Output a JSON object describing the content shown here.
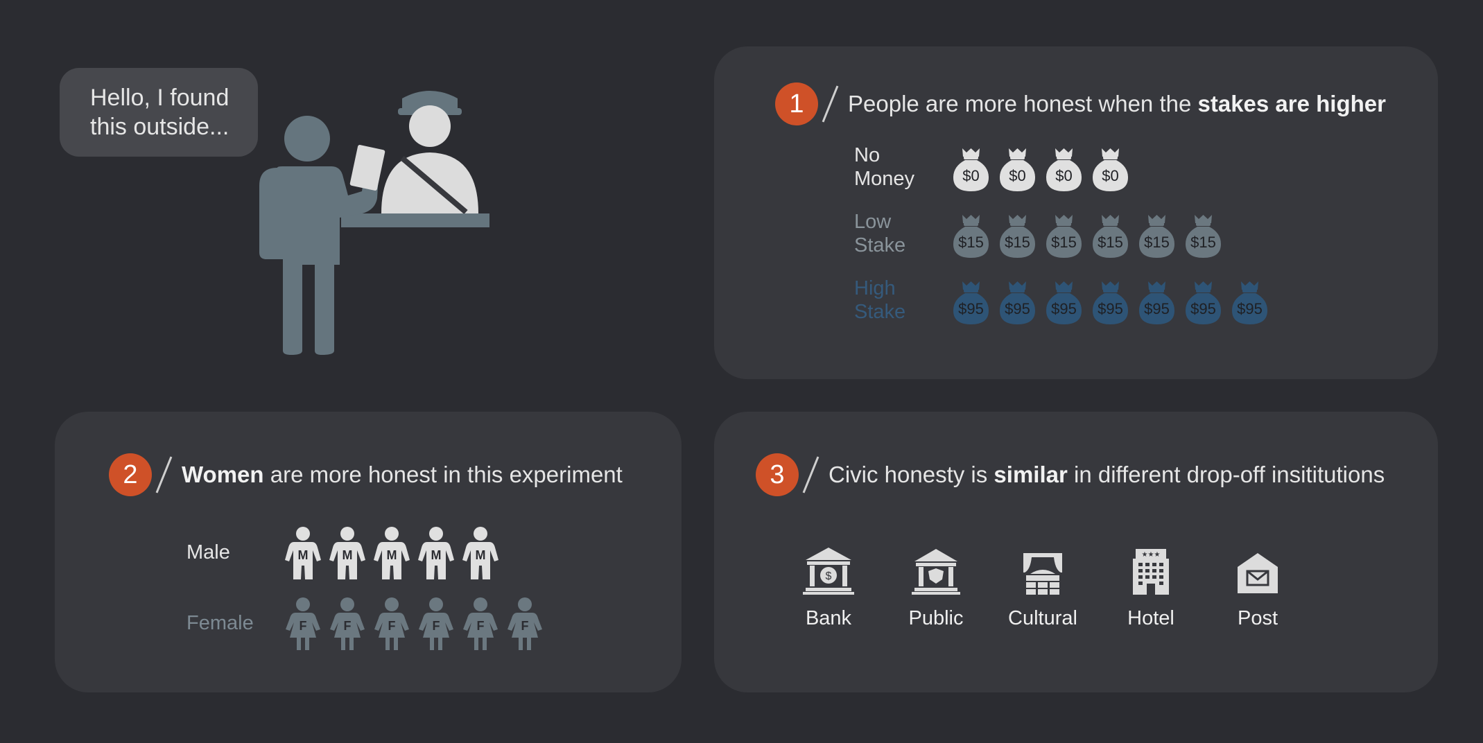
{
  "bubble": {
    "line1": "Hello, I found",
    "line2": "this outside..."
  },
  "panel1": {
    "number": "1",
    "heading": {
      "pre": "People are more honest when the ",
      "bold": "stakes are higher"
    },
    "rows": [
      {
        "label1": "No",
        "label2": "Money",
        "amount": "$0",
        "count": 4,
        "color": "#e0e0e0",
        "label_color": "#e6e6e6"
      },
      {
        "label1": "Low",
        "label2": "Stake",
        "amount": "$15",
        "count": 6,
        "color": "#6b7880",
        "label_color": "#8a949b"
      },
      {
        "label1": "High",
        "label2": "Stake",
        "amount": "$95",
        "count": 7,
        "color": "#2e5476",
        "label_color": "#355a7c"
      }
    ]
  },
  "panel2": {
    "number": "2",
    "heading": {
      "bold": "Women",
      "post": " are more honest in this experiment"
    },
    "rows": [
      {
        "label": "Male",
        "letter": "M",
        "count": 5,
        "color": "#e0e0e0",
        "label_color": "#e6e6e6"
      },
      {
        "label": "Female",
        "letter": "F",
        "count": 6,
        "color": "#6b7880",
        "label_color": "#7d8a93"
      }
    ]
  },
  "panel3": {
    "number": "3",
    "heading": {
      "pre": "Civic honesty is ",
      "bold": "similar",
      "post": " in different drop-off insititutions"
    },
    "institutions": [
      {
        "label": "Bank",
        "icon": "bank-icon"
      },
      {
        "label": "Public",
        "icon": "public-building-icon"
      },
      {
        "label": "Cultural",
        "icon": "theater-icon"
      },
      {
        "label": "Hotel",
        "icon": "hotel-icon"
      },
      {
        "label": "Post",
        "icon": "mail-icon"
      }
    ]
  },
  "colors": {
    "accent": "#cf5128",
    "background": "#2b2c31",
    "panel": "#37383d",
    "citizen": "#65757e",
    "clerk": "#dcdcdc"
  }
}
